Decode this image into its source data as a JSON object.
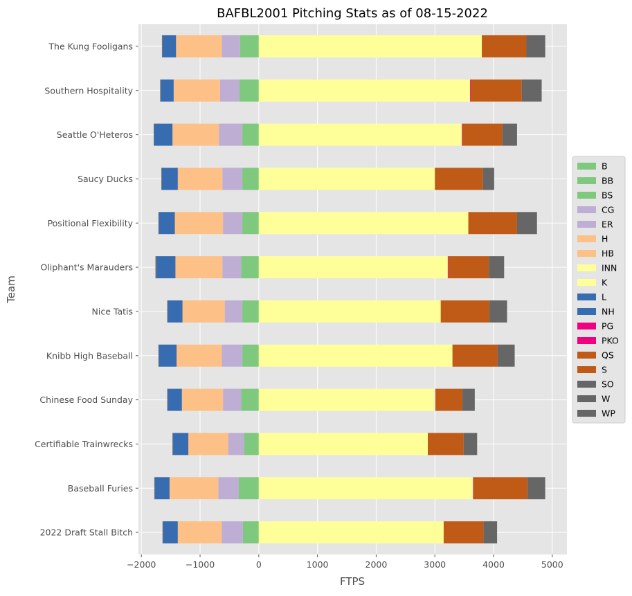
{
  "chart_data": {
    "type": "bar",
    "orientation": "horizontal",
    "stacked": true,
    "title": "BAFBL2001 Pitching Stats as of 08-15-2022",
    "xlabel": "FTPS",
    "ylabel": "Team",
    "xlim": [
      -2050,
      5250
    ],
    "xticks": [
      -2000,
      -1000,
      0,
      1000,
      2000,
      3000,
      4000,
      5000
    ],
    "xtick_labels": [
      "−2000",
      "−1000",
      "0",
      "1000",
      "2000",
      "3000",
      "4000",
      "5000"
    ],
    "grid": true,
    "legend_position": "center-right",
    "categories": [
      "2022 Draft Stall Bitch",
      "Baseball Furies",
      "Certifiable Trainwrecks",
      "Chinese Food Sunday",
      "Knibb High Baseball",
      "Nice Tatis",
      "Oliphant's Marauders",
      "Positional Flexibility",
      "Saucy Ducks",
      "Seattle O'Heteros",
      "Southern Hospitality",
      "The Kung Fooligans"
    ],
    "series": [
      {
        "name": "B",
        "color": "#7fc97f",
        "values": [
          0,
          0,
          0,
          0,
          0,
          0,
          0,
          0,
          0,
          0,
          0,
          0
        ]
      },
      {
        "name": "BB",
        "color": "#7fc97f",
        "values": [
          -270,
          -340,
          -250,
          -300,
          -280,
          -280,
          -300,
          -280,
          -280,
          -280,
          -330,
          -320
        ]
      },
      {
        "name": "BS",
        "color": "#7fc97f",
        "values": [
          0,
          0,
          0,
          0,
          0,
          0,
          0,
          0,
          0,
          0,
          0,
          0
        ]
      },
      {
        "name": "CG",
        "color": "#beaed4",
        "values": [
          0,
          0,
          0,
          0,
          0,
          0,
          0,
          0,
          0,
          0,
          0,
          0
        ]
      },
      {
        "name": "ER",
        "color": "#beaed4",
        "values": [
          -360,
          -350,
          -270,
          -310,
          -350,
          -300,
          -320,
          -330,
          -340,
          -400,
          -330,
          -310
        ]
      },
      {
        "name": "H",
        "color": "#fdc086",
        "values": [
          -750,
          -830,
          -680,
          -700,
          -770,
          -720,
          -800,
          -820,
          -760,
          -790,
          -790,
          -780
        ]
      },
      {
        "name": "HB",
        "color": "#fdc086",
        "values": [
          0,
          0,
          0,
          0,
          0,
          0,
          0,
          0,
          0,
          0,
          0,
          0
        ]
      },
      {
        "name": "INN",
        "color": "#ffff99",
        "values": [
          3150,
          3650,
          2880,
          3010,
          3300,
          3100,
          3220,
          3570,
          3000,
          3460,
          3600,
          3800
        ]
      },
      {
        "name": "K",
        "color": "#ffff99",
        "values": [
          0,
          0,
          0,
          0,
          0,
          0,
          0,
          0,
          0,
          0,
          0,
          0
        ]
      },
      {
        "name": "L",
        "color": "#386cb0",
        "values": [
          -250,
          -250,
          -260,
          -240,
          -300,
          -250,
          -320,
          -270,
          -270,
          -310,
          -220,
          -230
        ]
      },
      {
        "name": "NH",
        "color": "#386cb0",
        "values": [
          0,
          0,
          0,
          0,
          0,
          0,
          0,
          0,
          0,
          0,
          0,
          0
        ]
      },
      {
        "name": "PG",
        "color": "#f0027f",
        "values": [
          0,
          0,
          0,
          0,
          0,
          0,
          0,
          0,
          0,
          0,
          0,
          0
        ]
      },
      {
        "name": "PKO",
        "color": "#f0027f",
        "values": [
          0,
          10,
          0,
          10,
          0,
          0,
          10,
          0,
          0,
          10,
          10,
          0
        ]
      },
      {
        "name": "QS",
        "color": "#bf5b17",
        "values": [
          0,
          0,
          0,
          0,
          0,
          0,
          0,
          0,
          0,
          0,
          0,
          0
        ]
      },
      {
        "name": "S",
        "color": "#bf5b17",
        "values": [
          680,
          920,
          610,
          450,
          770,
          830,
          690,
          830,
          820,
          680,
          870,
          760
        ]
      },
      {
        "name": "SO",
        "color": "#666666",
        "values": [
          0,
          0,
          0,
          0,
          0,
          0,
          0,
          0,
          0,
          0,
          0,
          0
        ]
      },
      {
        "name": "W",
        "color": "#666666",
        "values": [
          230,
          300,
          230,
          210,
          290,
          300,
          260,
          340,
          190,
          250,
          340,
          320
        ]
      },
      {
        "name": "WP",
        "color": "#666666",
        "values": [
          -10,
          -10,
          -10,
          -10,
          -10,
          -10,
          -20,
          -10,
          -10,
          -10,
          -10,
          -10
        ]
      }
    ]
  }
}
